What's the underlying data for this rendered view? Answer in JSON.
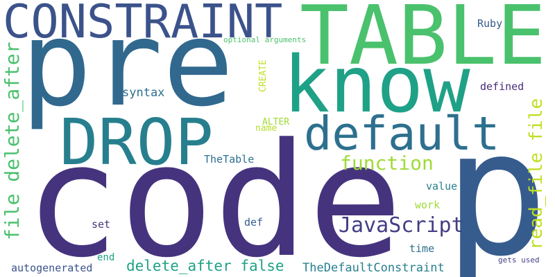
{
  "words": [
    {
      "id": "code",
      "text": "code",
      "color": "#46337e"
    },
    {
      "id": "p",
      "text": "p",
      "color": "#365c8d"
    },
    {
      "id": "pre",
      "text": "pre",
      "color": "#31688e"
    },
    {
      "id": "table",
      "text": "TABLE",
      "color": "#4ac16d"
    },
    {
      "id": "know",
      "text": "know",
      "color": "#1fa187"
    },
    {
      "id": "constraint",
      "text": "CONSTRAINT",
      "color": "#3b528b"
    },
    {
      "id": "drop",
      "text": "DROP",
      "color": "#277f8e"
    },
    {
      "id": "default",
      "text": "default",
      "color": "#2d708e"
    },
    {
      "id": "javascript",
      "text": "JavaScript",
      "color": "#433e85"
    },
    {
      "id": "read-file-file",
      "text": "read_file file",
      "color": "#c0df25"
    },
    {
      "id": "file-delete-after",
      "text": "file delete_after",
      "color": "#4ac16d"
    },
    {
      "id": "function",
      "text": "function",
      "color": "#a0da39"
    },
    {
      "id": "delete-after-false",
      "text": "delete_after false",
      "color": "#1fa187"
    },
    {
      "id": "thedefaultconstraint",
      "text": "TheDefaultConstraint",
      "color": "#277f8e"
    },
    {
      "id": "autogenerated",
      "text": "autogenerated",
      "color": "#3b528b"
    },
    {
      "id": "thetable",
      "text": "TheTable",
      "color": "#2d708e"
    },
    {
      "id": "syntax",
      "text": "syntax",
      "color": "#2d708e"
    },
    {
      "id": "ruby",
      "text": "Ruby",
      "color": "#365c8d"
    },
    {
      "id": "defined",
      "text": "defined",
      "color": "#472d7b"
    },
    {
      "id": "value",
      "text": "value",
      "color": "#277f8e"
    },
    {
      "id": "work",
      "text": "work",
      "color": "#a0da39"
    },
    {
      "id": "time",
      "text": "time",
      "color": "#2d708e"
    },
    {
      "id": "set",
      "text": "set",
      "color": "#46337e"
    },
    {
      "id": "def",
      "text": "def",
      "color": "#365c8d"
    },
    {
      "id": "end",
      "text": "end",
      "color": "#1fa187"
    },
    {
      "id": "name",
      "text": "name",
      "color": "#b5de2b"
    },
    {
      "id": "alter",
      "text": "ALTER",
      "color": "#a0da39"
    },
    {
      "id": "create",
      "text": "CREATE",
      "color": "#c0df25"
    },
    {
      "id": "optional-arguments",
      "text": "optional arguments",
      "color": "#4ac16d"
    },
    {
      "id": "gets-used",
      "text": "gets used",
      "color": "#433e85"
    }
  ]
}
